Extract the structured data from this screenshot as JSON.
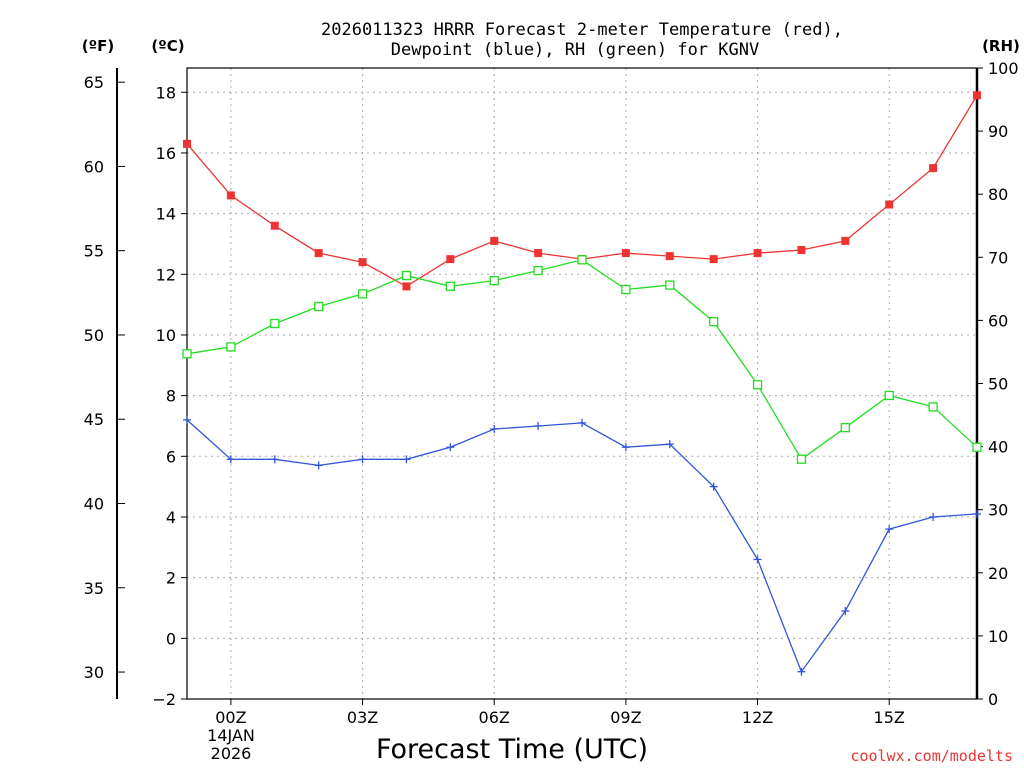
{
  "chart_data": {
    "type": "line",
    "title_line1": "2026011323 HRRR Forecast 2-meter Temperature (red),",
    "title_line2": "Dewpoint (blue), RH (green) for KGNV",
    "xlabel": "Forecast Time (UTC)",
    "unit_f": "(ºF)",
    "unit_c": "(ºC)",
    "unit_rh": "(RH)",
    "date_line1": "14JAN",
    "date_line2": "2026",
    "watermark": "coolwx.com/modelts",
    "x": [
      "23Z",
      "00Z",
      "01Z",
      "02Z",
      "03Z",
      "04Z",
      "05Z",
      "06Z",
      "07Z",
      "08Z",
      "09Z",
      "10Z",
      "11Z",
      "12Z",
      "13Z",
      "14Z",
      "15Z",
      "16Z",
      "17Z"
    ],
    "x_tick_labels": [
      "00Z",
      "03Z",
      "06Z",
      "09Z",
      "12Z",
      "15Z"
    ],
    "x_tick_positions": [
      1,
      4,
      7,
      10,
      13,
      16
    ],
    "celsius_range": [
      -2,
      18.8
    ],
    "celsius_ticks": [
      -2,
      0,
      2,
      4,
      6,
      8,
      10,
      12,
      14,
      16,
      18
    ],
    "fahrenheit_ticks": [
      30,
      35,
      40,
      45,
      50,
      55,
      60,
      65
    ],
    "rh_range": [
      0,
      100
    ],
    "rh_ticks": [
      0,
      10,
      20,
      30,
      40,
      50,
      60,
      70,
      80,
      90,
      100
    ],
    "series": [
      {
        "name": "Temperature",
        "color": "#ee3333",
        "marker": "filled-square",
        "axis": "celsius",
        "values": [
          16.3,
          14.6,
          13.6,
          12.7,
          12.4,
          11.6,
          12.5,
          13.1,
          12.7,
          12.5,
          12.7,
          12.6,
          12.5,
          12.7,
          12.8,
          13.1,
          14.3,
          15.5,
          17.9
        ]
      },
      {
        "name": "Dewpoint",
        "color": "#3355dd",
        "marker": "plus",
        "axis": "celsius",
        "values": [
          7.2,
          5.9,
          5.9,
          5.7,
          5.9,
          5.9,
          6.3,
          6.9,
          7.0,
          7.1,
          6.3,
          6.4,
          5.0,
          2.6,
          -1.1,
          0.9,
          3.6,
          4.0,
          4.1
        ]
      },
      {
        "name": "RH",
        "color": "#22dd22",
        "marker": "open-square",
        "axis": "rh",
        "values": [
          54.7,
          55.8,
          59.5,
          62.2,
          64.2,
          67.1,
          65.4,
          66.3,
          67.9,
          69.6,
          64.9,
          65.6,
          59.8,
          49.8,
          38.0,
          43.0,
          48.1,
          46.3,
          39.9
        ]
      }
    ]
  }
}
